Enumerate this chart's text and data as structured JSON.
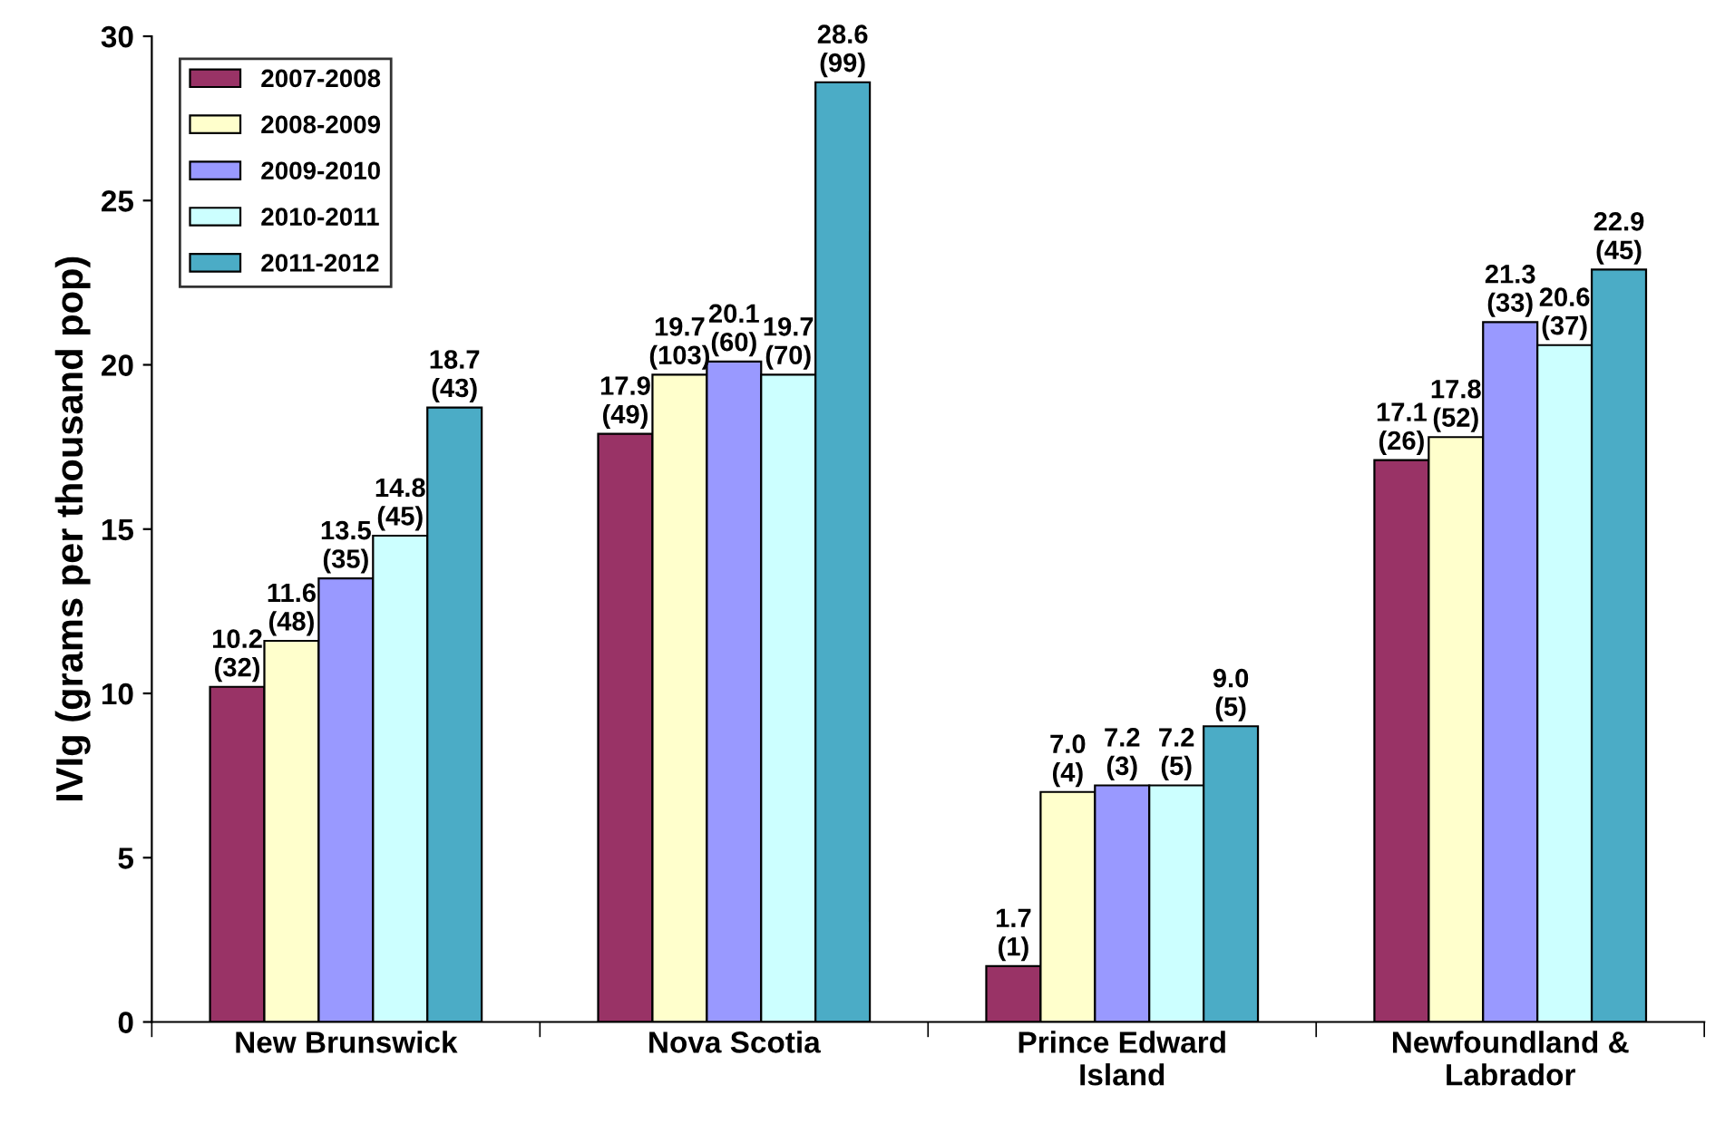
{
  "chart_data": {
    "type": "bar",
    "ylabel": "IVIg (grams per thousand pop)",
    "categories": [
      "New Brunswick",
      "Nova Scotia",
      "Prince Edward\nIsland",
      "Newfoundland &\nLabrador"
    ],
    "series": [
      {
        "name": "2007-2008",
        "color": "#993366",
        "values": [
          10.2,
          17.9,
          1.7,
          17.1
        ],
        "value_labels": [
          "10.2\n(32)",
          "17.9\n(49)",
          "1.7\n(1)",
          "17.1\n(26)"
        ]
      },
      {
        "name": "2008-2009",
        "color": "#ffffcc",
        "values": [
          11.6,
          19.7,
          7.0,
          17.8
        ],
        "value_labels": [
          "11.6\n(48)",
          "19.7\n(103)",
          "7.0\n(4)",
          "17.8\n(52)"
        ]
      },
      {
        "name": "2009-2010",
        "color": "#9999ff",
        "values": [
          13.5,
          20.1,
          7.2,
          21.3
        ],
        "value_labels": [
          "13.5\n(35)",
          "20.1\n(60)",
          "7.2\n(3)",
          "21.3\n(33)"
        ]
      },
      {
        "name": "2010-2011",
        "color": "#ccffff",
        "values": [
          14.8,
          19.7,
          7.2,
          20.6
        ],
        "value_labels": [
          "14.8\n(45)",
          "19.7\n(70)",
          "7.2\n(5)",
          "20.6\n(37)"
        ]
      },
      {
        "name": "2011-2012",
        "color": "#4bacc6",
        "values": [
          18.7,
          28.6,
          9.0,
          22.9
        ],
        "value_labels": [
          "18.7\n(43)",
          "28.6\n(99)",
          "9.0\n(5)",
          "22.9\n(45)"
        ]
      }
    ],
    "ylim": [
      0,
      30
    ],
    "yticks": [
      0,
      5,
      10,
      15,
      20,
      25,
      30
    ],
    "grid": false,
    "legend": "top left"
  }
}
